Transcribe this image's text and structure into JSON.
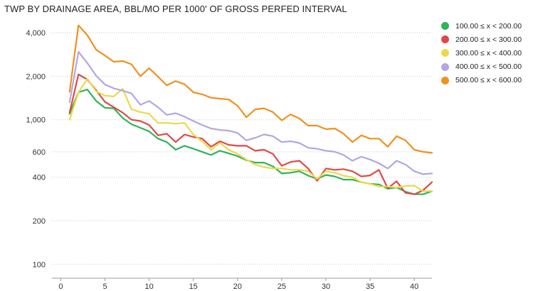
{
  "chart_data": {
    "type": "line",
    "title": "TWP BY DRAINAGE AREA, BBL/MO PER 1000' OF GROSS PERFED INTERVAL",
    "xlabel": "",
    "ylabel": "",
    "y_scale": "log",
    "xlim": [
      -1,
      42
    ],
    "ylim": [
      80,
      5500
    ],
    "x_ticks": [
      0,
      5,
      10,
      15,
      20,
      25,
      30,
      35,
      40
    ],
    "y_ticks": [
      100,
      200,
      400,
      600,
      1000,
      2000,
      4000
    ],
    "y_tick_labels": [
      "100",
      "200",
      "400",
      "600",
      "1,000",
      "2,000",
      "4,000"
    ],
    "grid": "horizontal dotted",
    "legend_position": "top-right",
    "x": [
      1,
      2,
      3,
      4,
      5,
      6,
      7,
      8,
      9,
      10,
      11,
      12,
      13,
      14,
      15,
      16,
      17,
      18,
      19,
      20,
      21,
      22,
      23,
      24,
      25,
      26,
      27,
      28,
      29,
      30,
      31,
      32,
      33,
      34,
      35,
      36,
      37,
      38,
      39,
      40,
      41,
      42
    ],
    "series": [
      {
        "name": "100.00 ≤ x < 200.00",
        "color": "#2db45a",
        "values": [
          1100,
          1550,
          1620,
          1350,
          1210,
          1200,
          1030,
          930,
          880,
          830,
          740,
          700,
          620,
          660,
          630,
          600,
          570,
          610,
          585,
          560,
          525,
          505,
          505,
          475,
          425,
          430,
          440,
          410,
          390,
          415,
          405,
          385,
          385,
          370,
          360,
          357,
          333,
          340,
          318,
          305,
          305,
          320
        ]
      },
      {
        "name": "200.00 ≤ x < 300.00",
        "color": "#e04848",
        "values": [
          1120,
          2060,
          1900,
          1600,
          1330,
          1220,
          1120,
          1000,
          980,
          920,
          780,
          800,
          700,
          790,
          760,
          740,
          650,
          710,
          670,
          660,
          660,
          610,
          620,
          580,
          480,
          510,
          520,
          460,
          378,
          460,
          450,
          455,
          440,
          405,
          412,
          450,
          335,
          375,
          312,
          305,
          325,
          370
        ]
      },
      {
        "name": "300.00 ≤ x < 400.00",
        "color": "#ecd94a",
        "values": [
          1000,
          1550,
          1920,
          1570,
          1470,
          1450,
          1640,
          1180,
          1130,
          1100,
          950,
          950,
          940,
          950,
          790,
          710,
          620,
          690,
          620,
          580,
          530,
          490,
          470,
          460,
          460,
          450,
          450,
          440,
          390,
          440,
          430,
          410,
          400,
          370,
          360,
          345,
          345,
          340,
          348,
          350,
          320,
          320
        ]
      },
      {
        "name": "400.00 ≤ x < 500.00",
        "color": "#b3a6e0",
        "values": [
          1320,
          2950,
          2470,
          2020,
          1750,
          1650,
          1590,
          1520,
          1270,
          1350,
          1220,
          1080,
          1110,
          1050,
          980,
          920,
          870,
          850,
          840,
          810,
          720,
          750,
          790,
          770,
          700,
          710,
          690,
          640,
          630,
          610,
          600,
          570,
          520,
          555,
          530,
          500,
          460,
          520,
          490,
          440,
          420,
          425
        ]
      },
      {
        "name": "500.00 ≤ x < 600.00",
        "color": "#f0901e",
        "values": [
          1560,
          4500,
          3850,
          3050,
          2780,
          2520,
          2550,
          2420,
          2000,
          2270,
          1990,
          1730,
          1850,
          1760,
          1550,
          1500,
          1420,
          1400,
          1380,
          1250,
          1040,
          1180,
          1200,
          1130,
          990,
          1090,
          1020,
          910,
          910,
          860,
          870,
          800,
          700,
          780,
          740,
          740,
          650,
          770,
          720,
          620,
          600,
          590
        ]
      }
    ]
  }
}
